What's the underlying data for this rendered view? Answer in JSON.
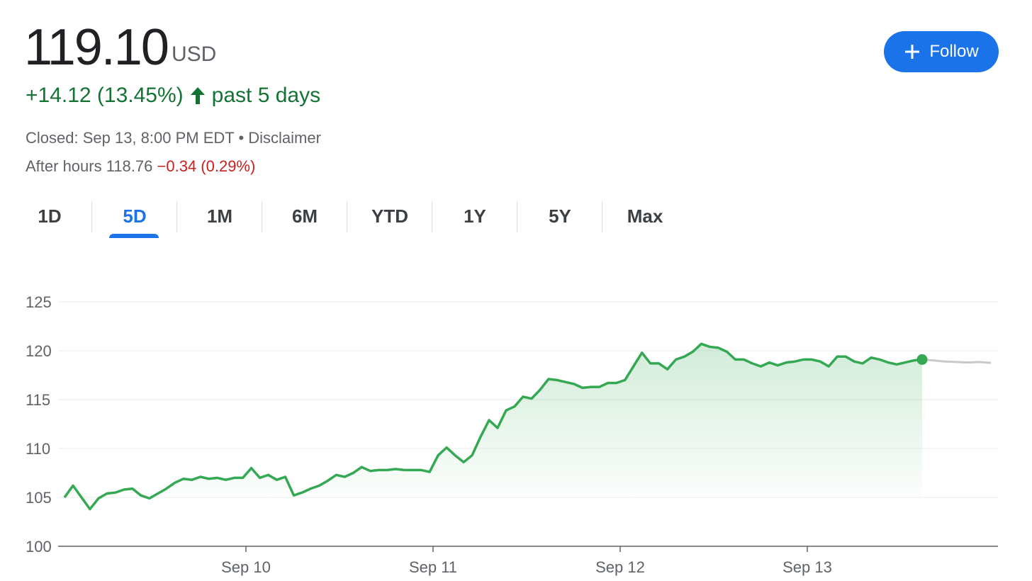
{
  "quote": {
    "price": "119.10",
    "currency": "USD",
    "change": "+14.12 (13.45%)",
    "period": "past 5 days",
    "closed": "Closed: Sep 13, 8:00 PM EDT",
    "separator": "•",
    "disclaimer": "Disclaimer",
    "after_hours_label": "After hours 118.76",
    "after_hours_change": "−0.34 (0.29%)"
  },
  "follow_button": {
    "label": "Follow",
    "icon": "plus-icon"
  },
  "tabs": [
    {
      "label": "1D"
    },
    {
      "label": "5D",
      "active": true
    },
    {
      "label": "1M"
    },
    {
      "label": "6M"
    },
    {
      "label": "YTD"
    },
    {
      "label": "1Y"
    },
    {
      "label": "5Y"
    },
    {
      "label": "Max"
    }
  ],
  "colors": {
    "up": "#137333",
    "line": "#34a853",
    "down": "#c5221f",
    "accent": "#1a73e8",
    "after_hours_line": "#c8c8c8"
  },
  "chart_data": {
    "type": "line",
    "ylim": [
      100,
      125
    ],
    "yticks": [
      "100",
      "105",
      "110",
      "115",
      "120",
      "125"
    ],
    "xticks": [
      "Sep 10",
      "Sep 11",
      "Sep 12",
      "Sep 13"
    ],
    "grid": true,
    "values": [
      105.0,
      106.2,
      105.0,
      103.8,
      104.9,
      105.4,
      105.5,
      105.8,
      105.9,
      105.2,
      104.9,
      105.4,
      105.9,
      106.5,
      106.9,
      106.8,
      107.1,
      106.9,
      107.0,
      106.8,
      107.0,
      107.0,
      108.0,
      107.0,
      107.3,
      106.8,
      107.1,
      105.2,
      105.5,
      105.9,
      106.2,
      106.7,
      107.3,
      107.1,
      107.5,
      108.1,
      107.7,
      107.8,
      107.8,
      107.9,
      107.8,
      107.8,
      107.8,
      107.6,
      109.3,
      110.1,
      109.3,
      108.6,
      109.3,
      111.2,
      112.9,
      112.1,
      113.9,
      114.3,
      115.3,
      115.1,
      116.0,
      117.1,
      117.0,
      116.8,
      116.6,
      116.2,
      116.3,
      116.3,
      116.7,
      116.7,
      117.0,
      118.4,
      119.8,
      118.7,
      118.7,
      118.1,
      119.1,
      119.4,
      119.9,
      120.7,
      120.4,
      120.3,
      119.9,
      119.1,
      119.1,
      118.7,
      118.4,
      118.8,
      118.5,
      118.8,
      118.9,
      119.1,
      119.1,
      118.9,
      118.4,
      119.4,
      119.4,
      118.9,
      118.7,
      119.3,
      119.1,
      118.8,
      118.6,
      118.8,
      119.0,
      119.1
    ],
    "after_hours_values": [
      119.1,
      119.0,
      118.9,
      118.85,
      118.8,
      118.85,
      118.76
    ]
  }
}
